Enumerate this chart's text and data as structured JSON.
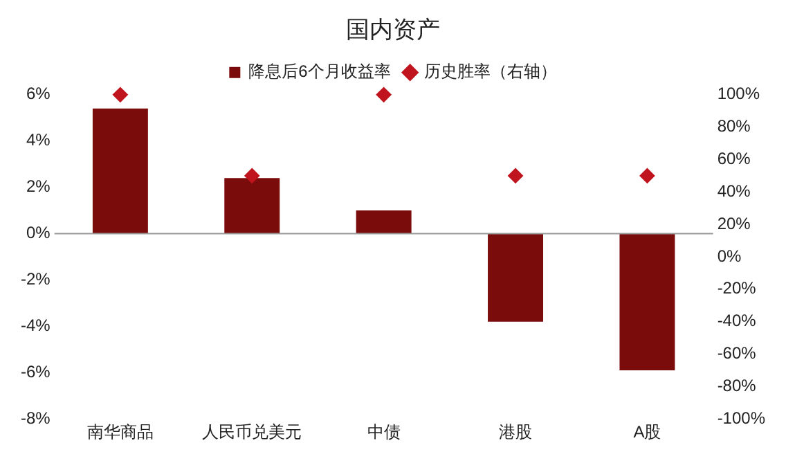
{
  "chart_data": {
    "type": "bar",
    "title": "国内资产",
    "categories": [
      "南华商品",
      "人民币兑美元",
      "中债",
      "港股",
      "A股"
    ],
    "series": [
      {
        "name": "降息后6个月收益率",
        "color": "#7b0c0c",
        "values": [
          5.4,
          2.4,
          1.0,
          -3.8,
          -5.9
        ]
      },
      {
        "name": "历史胜率（右轴）",
        "type": "scatter",
        "axis": "y2",
        "color": "#c0151e",
        "values": [
          100,
          50,
          100,
          50,
          50
        ]
      }
    ],
    "ylim": [
      -8,
      6
    ],
    "yticks": [
      {
        "value": -8,
        "label": "-8%"
      },
      {
        "value": -6,
        "label": "-6%"
      },
      {
        "value": -4,
        "label": "-4%"
      },
      {
        "value": -2,
        "label": "-2%"
      },
      {
        "value": 0,
        "label": "0%"
      },
      {
        "value": 2,
        "label": "2%"
      },
      {
        "value": 4,
        "label": "4%"
      },
      {
        "value": 6,
        "label": "6%"
      }
    ],
    "y2lim": [
      -100,
      100
    ],
    "y2ticks": [
      {
        "value": -100,
        "label": "-100%"
      },
      {
        "value": -80,
        "label": "-80%"
      },
      {
        "value": -60,
        "label": "-60%"
      },
      {
        "value": -40,
        "label": "-40%"
      },
      {
        "value": -20,
        "label": "-20%"
      },
      {
        "value": 0,
        "label": "0%"
      },
      {
        "value": 20,
        "label": "20%"
      },
      {
        "value": 40,
        "label": "40%"
      },
      {
        "value": 60,
        "label": "60%"
      },
      {
        "value": 80,
        "label": "80%"
      },
      {
        "value": 100,
        "label": "100%"
      }
    ],
    "marker": "diamond",
    "legend": "top"
  }
}
